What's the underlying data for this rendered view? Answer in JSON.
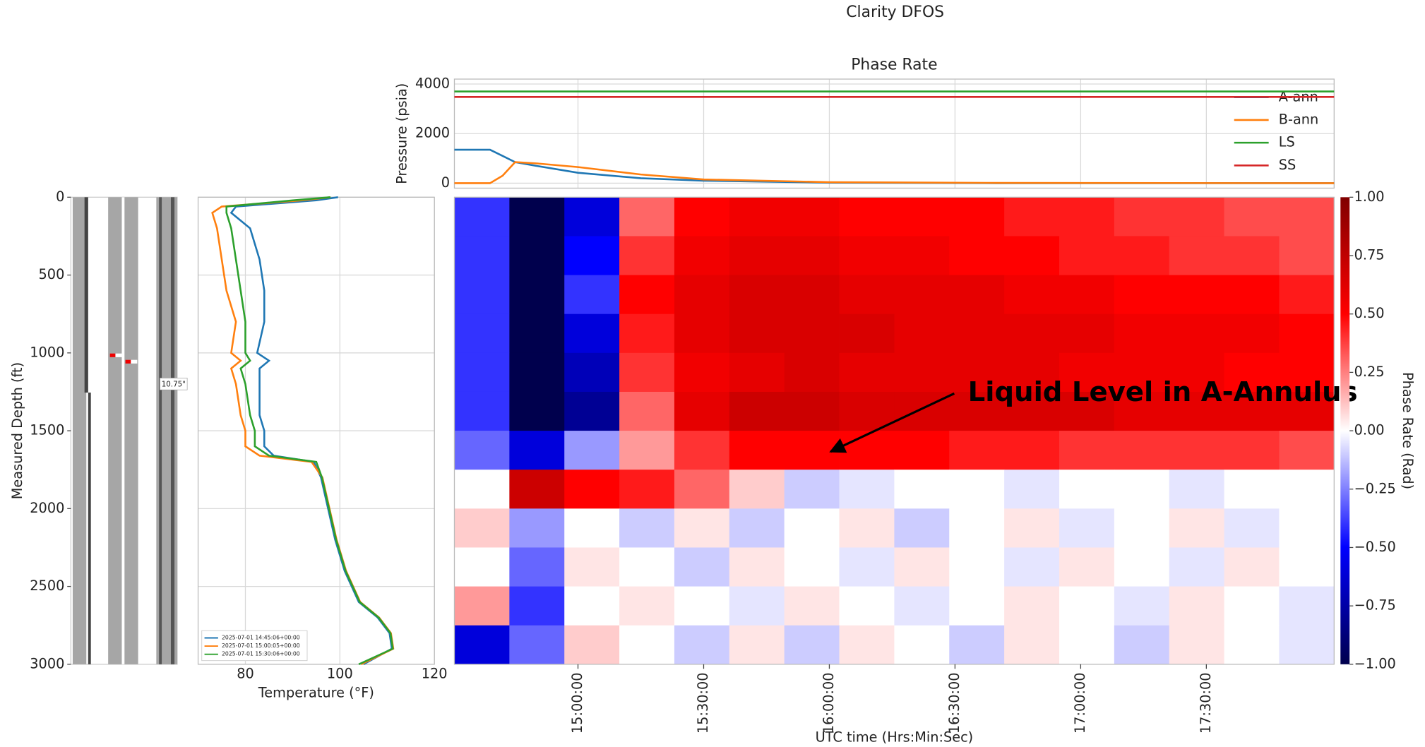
{
  "title": "Clarity DFOS",
  "chart_data": [
    {
      "type": "line",
      "title": "Phase Rate",
      "ylabel": "Pressure (psia)",
      "x": [
        870.5,
        876,
        879,
        882,
        885,
        890,
        900,
        915,
        930,
        960,
        1000,
        1080.5
      ],
      "xlim": [
        870.5,
        1080.5
      ],
      "xticks": [
        900,
        930,
        960,
        990,
        1020,
        1050
      ],
      "ylim": [
        -200,
        4200
      ],
      "yticks": [
        0,
        2000,
        4000
      ],
      "grid": true,
      "legend": "upper right",
      "series": [
        {
          "name": "A-ann",
          "color": "#1f77b4",
          "values": [
            1350,
            1350,
            1350,
            1100,
            850,
            700,
            420,
            200,
            100,
            20,
            0,
            0
          ]
        },
        {
          "name": "B-ann",
          "color": "#ff7f0e",
          "values": [
            0,
            0,
            0,
            300,
            850,
            800,
            650,
            350,
            150,
            40,
            10,
            0
          ]
        },
        {
          "name": "LS",
          "color": "#2ca02c",
          "values": [
            3700,
            3700,
            3700,
            3700,
            3700,
            3700,
            3700,
            3700,
            3700,
            3700,
            3700,
            3700
          ]
        },
        {
          "name": "SS",
          "color": "#d62728",
          "values": [
            3480,
            3480,
            3480,
            3480,
            3480,
            3480,
            3480,
            3480,
            3480,
            3480,
            3480,
            3480
          ]
        }
      ]
    },
    {
      "type": "wellbore",
      "ylabel": "Measured Depth (ft)",
      "ylim": [
        0,
        3000
      ],
      "y_inverted": true,
      "yticks": [
        0,
        500,
        1000,
        1500,
        2000,
        2500,
        3000
      ],
      "annotation": "10.75\""
    },
    {
      "type": "profile",
      "xlabel": "Temperature (°F)",
      "xlim": [
        70,
        120
      ],
      "xticks": [
        80,
        100,
        120
      ],
      "ylim": [
        0,
        3000
      ],
      "y_inverted": true,
      "yticks": [
        0,
        500,
        1000,
        1500,
        2000,
        2500,
        3000
      ],
      "grid": true,
      "legend": "lower left",
      "depth": [
        0,
        20,
        60,
        100,
        200,
        400,
        600,
        800,
        1000,
        1050,
        1100,
        1200,
        1400,
        1500,
        1600,
        1660,
        1700,
        1800,
        2000,
        2200,
        2400,
        2600,
        2700,
        2800,
        2900,
        3000
      ],
      "series": [
        {
          "name": "2025-07-01 14:45:06+00:00",
          "color": "#1f77b4",
          "values": [
            99.6,
            95,
            78,
            77,
            81,
            83,
            84,
            84,
            82.5,
            85,
            83,
            83,
            83,
            84,
            84,
            86,
            94.5,
            96,
            97.5,
            99,
            101,
            104,
            108,
            110.5,
            111,
            105
          ]
        },
        {
          "name": "2025-07-01 15:00:05+00:00",
          "color": "#ff7f0e",
          "values": [
            98,
            92,
            75,
            73,
            74,
            75,
            76,
            78,
            77,
            79,
            77,
            78,
            79,
            80,
            80,
            83,
            94,
            96.3,
            97.8,
            99.3,
            101.3,
            104.3,
            108.3,
            110.8,
            111.3,
            104.5
          ]
        },
        {
          "name": "2025-07-01 15:30:06+00:00",
          "color": "#2ca02c",
          "values": [
            98,
            90,
            76,
            76,
            77,
            78,
            79,
            80,
            80,
            81,
            79,
            80,
            81,
            82,
            82,
            85,
            95,
            96.2,
            97.7,
            99.2,
            101.2,
            104.2,
            108.2,
            110.7,
            111.2,
            104
          ]
        }
      ]
    },
    {
      "type": "heatmap",
      "xlabel": "UTC time (Hrs:Min:Sec)",
      "xlim": [
        870.5,
        1080.5
      ],
      "xticks": [
        {
          "value": 900,
          "label": "15:00:00"
        },
        {
          "value": 930,
          "label": "15:30:00"
        },
        {
          "value": 960,
          "label": "16:00:00"
        },
        {
          "value": 990,
          "label": "16:30:00"
        },
        {
          "value": 1020,
          "label": "17:00:00"
        },
        {
          "value": 1050,
          "label": "17:30:00"
        }
      ],
      "ylim": [
        0,
        3000
      ],
      "y_inverted": true,
      "x_bins": [
        870.5,
        883.625,
        896.75,
        909.875,
        923,
        936.125,
        949.25,
        962.375,
        975.5,
        988.625,
        1001.75,
        1014.875,
        1028,
        1041.125,
        1054.25,
        1067.375,
        1080.5
      ],
      "y_bins": [
        0,
        250,
        500,
        750,
        1000,
        1250,
        1500,
        1750,
        2000,
        2250,
        2500,
        2750,
        3000
      ],
      "values": [
        [
          -0.4,
          -1,
          -0.6,
          0.3,
          0.5,
          0.55,
          0.55,
          0.5,
          0.5,
          0.5,
          0.45,
          0.45,
          0.4,
          0.4,
          0.35,
          0.35
        ],
        [
          -0.4,
          -1,
          -0.5,
          0.4,
          0.55,
          0.6,
          0.6,
          0.55,
          0.55,
          0.5,
          0.5,
          0.45,
          0.45,
          0.4,
          0.4,
          0.35
        ],
        [
          -0.4,
          -1,
          -0.4,
          0.5,
          0.6,
          0.65,
          0.65,
          0.6,
          0.6,
          0.6,
          0.55,
          0.55,
          0.5,
          0.5,
          0.5,
          0.45
        ],
        [
          -0.4,
          -1,
          -0.6,
          0.45,
          0.6,
          0.65,
          0.65,
          0.65,
          0.6,
          0.6,
          0.6,
          0.6,
          0.55,
          0.55,
          0.55,
          0.5
        ],
        [
          -0.4,
          -1,
          -0.7,
          0.4,
          0.55,
          0.6,
          0.65,
          0.6,
          0.6,
          0.6,
          0.6,
          0.55,
          0.55,
          0.55,
          0.5,
          0.5
        ],
        [
          -0.4,
          -1,
          -0.8,
          0.3,
          0.6,
          0.7,
          0.7,
          0.65,
          0.65,
          0.65,
          0.65,
          0.65,
          0.6,
          0.6,
          0.6,
          0.6
        ],
        [
          -0.3,
          -0.6,
          -0.2,
          0.2,
          0.4,
          0.5,
          0.5,
          0.5,
          0.5,
          0.45,
          0.45,
          0.4,
          0.4,
          0.4,
          0.4,
          0.35
        ],
        [
          0,
          0.7,
          0.5,
          0.45,
          0.3,
          0.1,
          -0.1,
          -0.05,
          0,
          0,
          -0.05,
          0,
          0,
          -0.05,
          0,
          0
        ],
        [
          0.1,
          -0.2,
          0,
          -0.1,
          0.05,
          -0.1,
          0,
          0.05,
          -0.1,
          0,
          0.05,
          -0.05,
          0,
          0.05,
          -0.05,
          0
        ],
        [
          0,
          -0.3,
          0.05,
          0,
          -0.1,
          0.05,
          0,
          -0.05,
          0.05,
          0,
          -0.05,
          0.05,
          0,
          -0.05,
          0.05,
          0
        ],
        [
          0.2,
          -0.4,
          0,
          0.05,
          0,
          -0.05,
          0.05,
          0,
          -0.05,
          0,
          0.05,
          0,
          -0.05,
          0.05,
          0,
          -0.05
        ],
        [
          -0.6,
          -0.3,
          0.1,
          0,
          -0.1,
          0.05,
          -0.1,
          0.05,
          0,
          -0.1,
          0.05,
          0,
          -0.1,
          0.05,
          0,
          -0.05
        ]
      ],
      "annotation": "Liquid Level in A-Annulus",
      "colorbar": {
        "label": "Phase Rate (Rad)",
        "lim": [
          -1,
          1
        ],
        "ticks": [
          {
            "value": 1,
            "label": "1.00"
          },
          {
            "value": 0.75,
            "label": "0.75"
          },
          {
            "value": 0.5,
            "label": "0.50"
          },
          {
            "value": 0.25,
            "label": "0.25"
          },
          {
            "value": 0,
            "label": "0.00"
          },
          {
            "value": -0.25,
            "label": "−0.25"
          },
          {
            "value": -0.5,
            "label": "−0.50"
          },
          {
            "value": -0.75,
            "label": "−0.75"
          },
          {
            "value": -1,
            "label": "−1.00"
          }
        ]
      }
    }
  ]
}
